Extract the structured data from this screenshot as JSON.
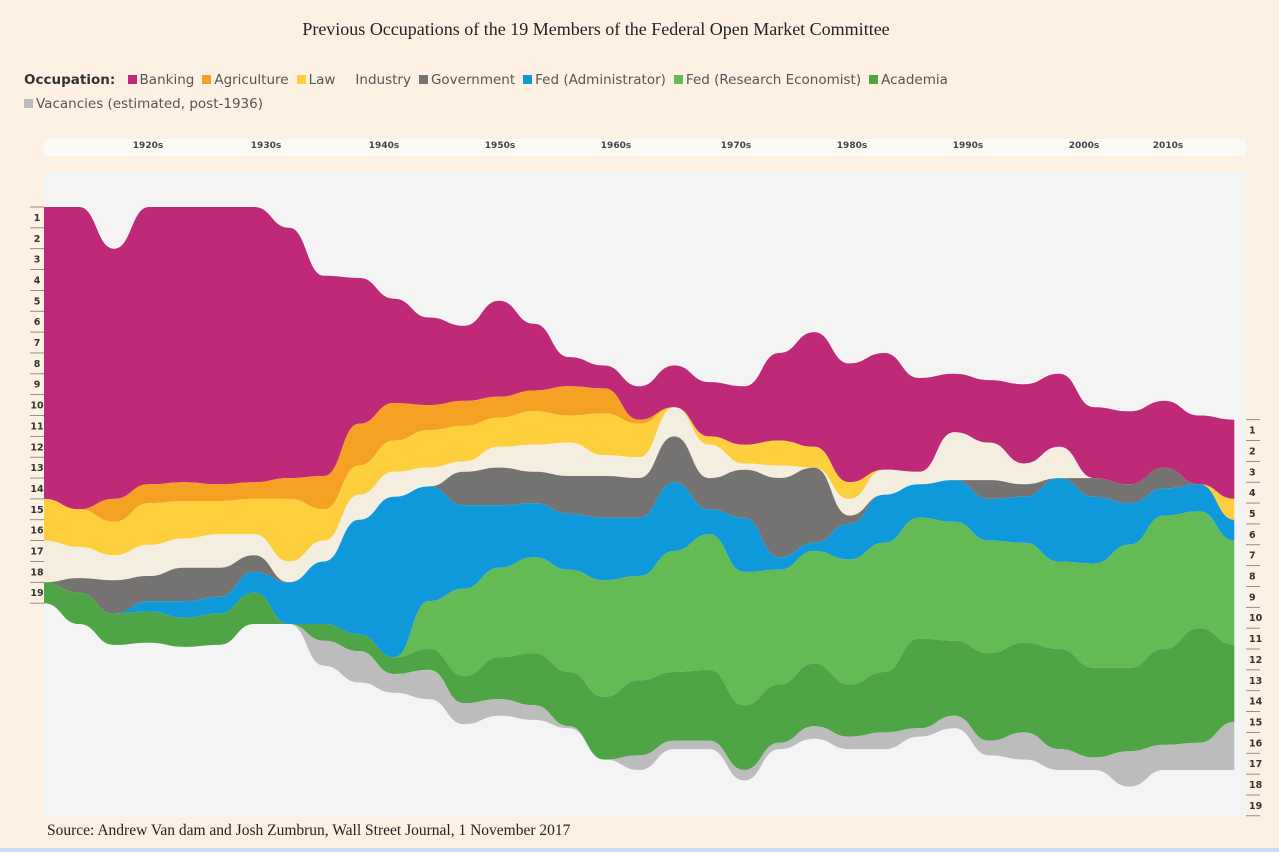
{
  "chart_data": {
    "type": "area",
    "title": "Previous Occupations of the 19 Members of the Federal Open Market Committee",
    "legend_title": "Occupation:",
    "legend_placement": "top",
    "xlabel": "",
    "ylabel": "",
    "x_ticks": [
      "1920s",
      "1930s",
      "1940s",
      "1950s",
      "1960s",
      "1970s",
      "1980s",
      "1990s",
      "2000s",
      "2010s"
    ],
    "x_range": [
      1914,
      2017
    ],
    "y_ticks_left": [
      "1",
      "2",
      "3",
      "4",
      "5",
      "6",
      "7",
      "8",
      "9",
      "10",
      "11",
      "12",
      "13",
      "14",
      "15",
      "16",
      "17",
      "18",
      "19"
    ],
    "y_ticks_right": [
      "1",
      "2",
      "3",
      "4",
      "5",
      "6",
      "7",
      "8",
      "9",
      "10",
      "11",
      "12",
      "13",
      "14",
      "15",
      "16",
      "17",
      "18",
      "19"
    ],
    "y_range": [
      0,
      19
    ],
    "grid": false,
    "source": "Source: Andrew Van dam and Josh Zumbrun, Wall Street Journal, 1 November 2017",
    "x": [
      1914,
      1917,
      1920,
      1923,
      1926,
      1929,
      1932,
      1935,
      1938,
      1941,
      1944,
      1947,
      1950,
      1953,
      1956,
      1959,
      1962,
      1965,
      1968,
      1971,
      1974,
      1977,
      1980,
      1983,
      1986,
      1989,
      1992,
      1995,
      1998,
      2001,
      2004,
      2007,
      2010,
      2013,
      2016
    ],
    "offset": [
      0.0,
      0.0,
      2.0,
      0.0,
      0.0,
      0.0,
      0.0,
      1.0,
      3.3,
      3.4,
      4.4,
      5.3,
      5.7,
      4.5,
      5.6,
      7.2,
      7.6,
      8.6,
      7.6,
      8.4,
      8.6,
      7.0,
      6.0,
      7.5,
      7.0,
      8.2,
      8.0,
      8.3,
      8.5,
      8.0,
      9.6,
      9.8,
      9.3,
      10.0,
      10.2
    ],
    "series": [
      {
        "name": "Banking",
        "color": "#be2a78",
        "values": [
          14.0,
          14.5,
          12.0,
          13.3,
          13.2,
          13.3,
          13.2,
          12.0,
          9.6,
          7.0,
          5.0,
          4.2,
          3.6,
          4.6,
          3.2,
          1.4,
          1.1,
          1.6,
          2.0,
          2.6,
          2.8,
          4.2,
          5.5,
          5.7,
          5.6,
          4.5,
          2.8,
          3.0,
          3.8,
          3.5,
          3.4,
          3.5,
          3.2,
          3.3,
          3.8
        ]
      },
      {
        "name": "Agriculture",
        "color": "#f5a124",
        "values": [
          0.0,
          0.0,
          1.1,
          0.9,
          0.9,
          0.8,
          0.8,
          1.0,
          1.6,
          2.0,
          1.8,
          1.2,
          1.2,
          1.0,
          1.0,
          1.4,
          1.2,
          0.2,
          0.0,
          0.0,
          0.0,
          0.0,
          0.0,
          0.0,
          0.0,
          0.0,
          0.0,
          0.0,
          0.0,
          0.0,
          0.0,
          0.0,
          0.0,
          0.0,
          0.0
        ]
      },
      {
        "name": "Law",
        "color": "#fdcf3c",
        "values": [
          2.0,
          1.8,
          1.6,
          2.0,
          1.8,
          1.6,
          1.7,
          3.0,
          1.5,
          1.4,
          1.5,
          1.8,
          1.7,
          1.4,
          1.6,
          1.3,
          2.0,
          1.6,
          0.0,
          0.4,
          0.9,
          1.2,
          1.0,
          0.8,
          0.0,
          0.0,
          0.0,
          0.0,
          0.0,
          0.0,
          0.0,
          0.0,
          0.0,
          0.0,
          1.0
        ]
      },
      {
        "name": "Industry",
        "color": "#f3eee0",
        "values": [
          2.0,
          1.5,
          1.2,
          1.5,
          1.4,
          1.6,
          1.0,
          1.0,
          1.0,
          1.2,
          1.2,
          0.9,
          0.5,
          1.0,
          1.3,
          1.6,
          1.0,
          1.0,
          1.4,
          1.6,
          0.3,
          0.6,
          0.0,
          0.8,
          1.2,
          0.6,
          2.3,
          1.8,
          1.0,
          1.5,
          0.0,
          0.0,
          0.0,
          0.0,
          0.0
        ]
      },
      {
        "name": "Government",
        "color": "#757371",
        "values": [
          0.0,
          0.7,
          1.6,
          1.2,
          1.6,
          1.4,
          0.8,
          0.0,
          0.0,
          0.0,
          0.0,
          0.0,
          1.6,
          1.8,
          1.5,
          1.8,
          2.0,
          1.9,
          2.2,
          1.5,
          2.3,
          3.8,
          3.6,
          0.4,
          0.0,
          0.0,
          0.0,
          0.9,
          0.6,
          0.0,
          0.9,
          0.9,
          1.0,
          0.0,
          0.0
        ]
      },
      {
        "name": "Fed (Administrator)",
        "color": "#0f99da",
        "values": [
          0.0,
          0.0,
          0.0,
          0.5,
          0.8,
          0.8,
          1.0,
          2.0,
          3.0,
          5.5,
          7.7,
          5.5,
          4.0,
          3.0,
          2.6,
          2.7,
          3.0,
          2.8,
          3.3,
          1.2,
          2.6,
          0.6,
          0.4,
          1.7,
          2.3,
          1.6,
          2.0,
          2.0,
          2.2,
          4.0,
          3.2,
          2.0,
          1.3,
          1.3,
          1.0
        ]
      },
      {
        "name": "Fed (Research Economist)",
        "color": "#64bb56",
        "values": [
          0.0,
          0.0,
          0.0,
          0.0,
          0.0,
          0.0,
          0.0,
          0.0,
          0.0,
          0.0,
          0.0,
          2.3,
          4.2,
          4.3,
          4.6,
          4.9,
          5.6,
          5.0,
          5.8,
          6.5,
          6.4,
          5.5,
          5.4,
          6.0,
          6.2,
          5.8,
          5.7,
          5.4,
          4.8,
          4.2,
          5.0,
          5.9,
          6.4,
          5.6,
          5.0
        ]
      },
      {
        "name": "Academia",
        "color": "#4fa446",
        "values": [
          1.0,
          1.5,
          1.5,
          1.5,
          1.4,
          1.5,
          1.5,
          0.0,
          0.8,
          0.8,
          0.8,
          1.0,
          1.3,
          2.0,
          2.5,
          2.6,
          3.0,
          3.6,
          3.3,
          3.4,
          3.1,
          2.8,
          3.0,
          2.5,
          2.9,
          4.3,
          3.6,
          4.2,
          4.3,
          4.8,
          4.3,
          4.0,
          4.6,
          5.5,
          3.7
        ]
      },
      {
        "name": "Vacancies (estimated, post-1936)",
        "color": "#bdbcbd",
        "values": [
          0.0,
          0.0,
          0.0,
          0.0,
          0.0,
          0.0,
          0.0,
          0.0,
          1.2,
          1.5,
          0.9,
          1.4,
          1.0,
          0.8,
          0.7,
          0.1,
          0.0,
          0.7,
          0.4,
          0.4,
          0.5,
          0.3,
          0.6,
          0.6,
          0.8,
          0.4,
          0.6,
          0.7,
          1.3,
          1.0,
          0.6,
          1.7,
          1.2,
          1.3,
          2.3
        ]
      }
    ]
  }
}
